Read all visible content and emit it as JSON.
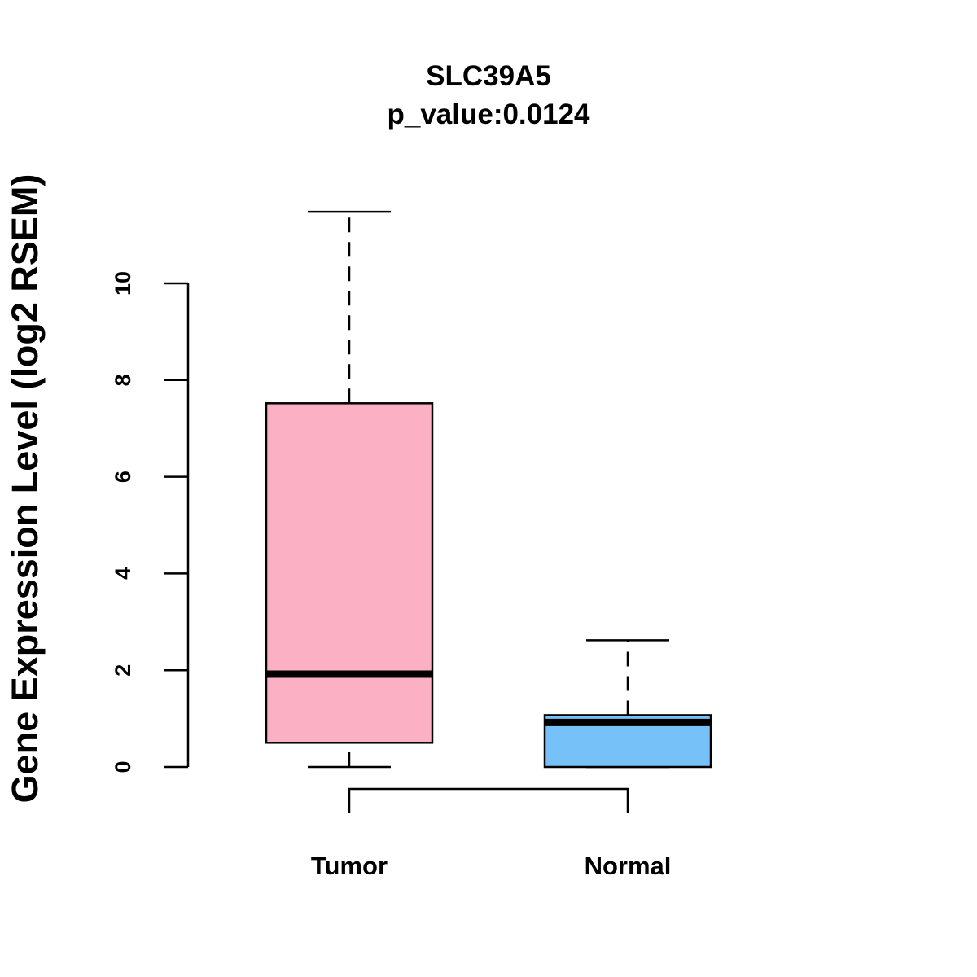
{
  "chart_data": {
    "type": "boxplot",
    "title": "SLC39A5",
    "subtitle": "p_value:0.0124",
    "xlabel": "",
    "ylabel": "Gene Expression Level (log2 RSEM)",
    "ylim": [
      0,
      10
    ],
    "yticks": [
      "0",
      "2",
      "4",
      "6",
      "8",
      "10"
    ],
    "categories": [
      "Tumor",
      "Normal"
    ],
    "series": [
      {
        "name": "Tumor",
        "color": "#FBB1C3",
        "whisker_low": 0.0,
        "q1": 0.5,
        "median": 1.92,
        "q3": 7.52,
        "whisker_high": 11.48
      },
      {
        "name": "Normal",
        "color": "#76C1F7",
        "whisker_low": 0.0,
        "q1": 0.0,
        "median": 0.92,
        "q3": 1.07,
        "whisker_high": 2.62
      }
    ],
    "comparison_bracket": [
      "Tumor",
      "Normal"
    ],
    "grid": false,
    "legend": "none"
  }
}
